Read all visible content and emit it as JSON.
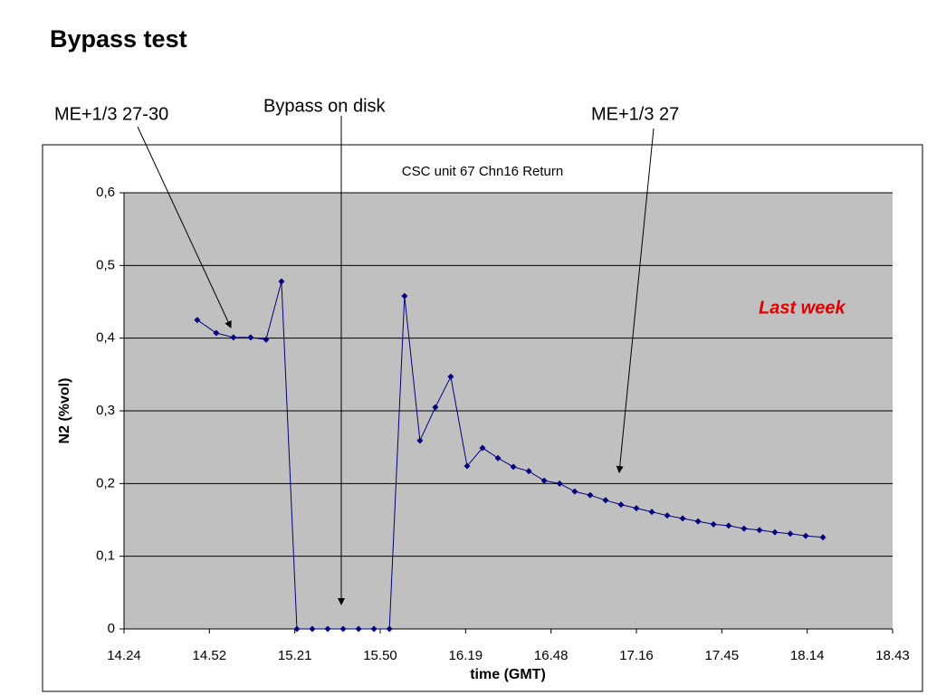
{
  "header": {
    "title": "Bypass test"
  },
  "chart_data": {
    "type": "line",
    "title": "CSC unit 67 Chn16 Return",
    "xlabel": "time (GMT)",
    "ylabel": "N2 (%vol)",
    "annotations": [
      "ME+1/3 27-30",
      "Bypass on disk",
      "ME+1/3 27",
      "Last week"
    ],
    "x": [
      888.7,
      895.1,
      900.9,
      906.7,
      911.9,
      917.1,
      922.3,
      927.5,
      932.7,
      937.9,
      943.1,
      948.3,
      953.5,
      958.6,
      963.8,
      969.0,
      974.2,
      979.7,
      984.9,
      990.1,
      995.3,
      1000.5,
      1005.7,
      1010.9,
      1016.0,
      1021.2,
      1026.4,
      1031.6,
      1036.8,
      1042.0,
      1047.2,
      1052.4,
      1057.6,
      1062.8,
      1067.9,
      1073.1,
      1078.3,
      1083.5,
      1088.7,
      1093.9,
      1099.7
    ],
    "series": [
      {
        "name": "N2",
        "color": "#000080",
        "values": [
          0.425,
          0.407,
          0.401,
          0.401,
          0.398,
          0.478,
          0,
          0,
          0,
          0,
          0,
          0,
          0,
          0.458,
          0.259,
          0.305,
          0.347,
          0.224,
          0.249,
          0.235,
          0.223,
          0.217,
          0.204,
          0.2,
          0.189,
          0.184,
          0.177,
          0.171,
          0.166,
          0.161,
          0.156,
          0.152,
          0.148,
          0.144,
          0.142,
          0.138,
          0.136,
          0.133,
          0.131,
          0.128,
          0.126
        ]
      }
    ],
    "xlim": [
      864,
      1123.2
    ],
    "xticks": [
      {
        "value": 864,
        "label": "14.24"
      },
      {
        "value": 892.8,
        "label": "14.52"
      },
      {
        "value": 921.6,
        "label": "15.21"
      },
      {
        "value": 950.4,
        "label": "15.50"
      },
      {
        "value": 979.2,
        "label": "16.19"
      },
      {
        "value": 1008,
        "label": "16.48"
      },
      {
        "value": 1036.8,
        "label": "17.16"
      },
      {
        "value": 1065.6,
        "label": "17.45"
      },
      {
        "value": 1094.4,
        "label": "18.14"
      },
      {
        "value": 1123.2,
        "label": "18.43"
      }
    ],
    "ylim": [
      0,
      0.6
    ],
    "yticks": [
      0,
      {
        "value": 0.1,
        "label": "0,1"
      },
      {
        "value": 0.2,
        "label": "0,2"
      },
      {
        "value": 0.3,
        "label": "0,3"
      },
      {
        "value": 0.4,
        "label": "0,4"
      },
      {
        "value": 0.5,
        "label": "0,5"
      },
      {
        "value": 0.6,
        "label": "0,6"
      }
    ],
    "grid": true,
    "plot_background": "#c0c0c0"
  }
}
